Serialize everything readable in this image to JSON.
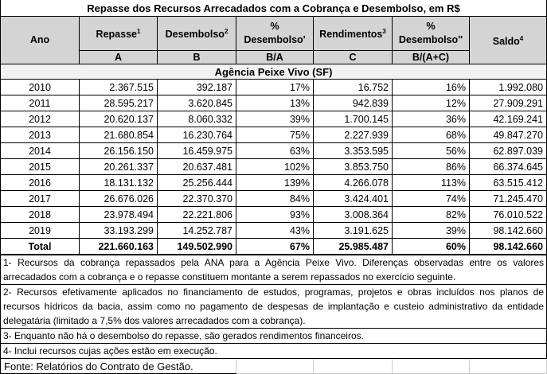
{
  "title": "Repasse dos Recursos Arrecadados com a Cobrança e Desembolso, em R$",
  "headers": [
    {
      "label": "Ano",
      "sup": "",
      "sub": ""
    },
    {
      "label": "Repasse",
      "sup": "1",
      "sub": "A"
    },
    {
      "label": "Desembolso",
      "sup": "2",
      "sub": "B"
    },
    {
      "label": "% Desembolso'",
      "sup": "",
      "sub": "B/A"
    },
    {
      "label": "Rendimentos",
      "sup": "3",
      "sub": "C"
    },
    {
      "label": "% Desembolso''",
      "sup": "",
      "sub": "B/(A+C)"
    },
    {
      "label": "Saldo",
      "sup": "4",
      "sub": ""
    }
  ],
  "agency": "Agência Peixe Vivo (SF)",
  "rows": [
    [
      "2010",
      "2.367.515",
      "392.187",
      "17%",
      "16.752",
      "16%",
      "1.992.080"
    ],
    [
      "2011",
      "28.595.217",
      "3.620.845",
      "13%",
      "942.839",
      "12%",
      "27.909.291"
    ],
    [
      "2012",
      "20.620.137",
      "8.060.332",
      "39%",
      "1.700.145",
      "36%",
      "42.169.241"
    ],
    [
      "2013",
      "21.680.854",
      "16.230.764",
      "75%",
      "2.227.939",
      "68%",
      "49.847.270"
    ],
    [
      "2014",
      "26.156.150",
      "16.459.975",
      "63%",
      "3.353.595",
      "56%",
      "62.897.039"
    ],
    [
      "2015",
      "20.261.337",
      "20.637.481",
      "102%",
      "3.853.750",
      "86%",
      "66.374.645"
    ],
    [
      "2016",
      "18.131.132",
      "25.256.444",
      "139%",
      "4.266.078",
      "113%",
      "63.515.412"
    ],
    [
      "2017",
      "26.676.026",
      "22.370.370",
      "84%",
      "3.424.401",
      "74%",
      "71.245.470"
    ],
    [
      "2018",
      "23.978.494",
      "22.221.806",
      "93%",
      "3.008.364",
      "82%",
      "76.010.522"
    ],
    [
      "2019",
      "33.193.299",
      "14.252.787",
      "43%",
      "3.191.625",
      "39%",
      "98.142.660"
    ]
  ],
  "total": [
    "Total",
    "221.660.163",
    "149.502.990",
    "67%",
    "25.985.487",
    "60%",
    "98.142.660"
  ],
  "notes": [
    "1- Recursos da cobrança repassados pela ANA para a Agência Peixe Vivo. Diferenças observadas entre os valores arrecadados com a cobrança e o repasse constituem montante a serem repassados no exercício seguinte.",
    "2- Recursos efetivamente aplicados no financiamento de estudos, programas, projetos e obras incluídos nos planos de recursos hídricos da bacia, assim como no pagamento de despesas de implantação e custeio administrativo da entidade delegatária  (limitado a 7,5% dos valores arrecadados com a cobrança).",
    "3- Enquanto não há o desembolso do repasse, são gerados rendimentos financeiros.",
    "4- Inclui recursos cujas ações estão em execução."
  ],
  "source": "Fonte: Relatórios do Contrato de Gestão."
}
